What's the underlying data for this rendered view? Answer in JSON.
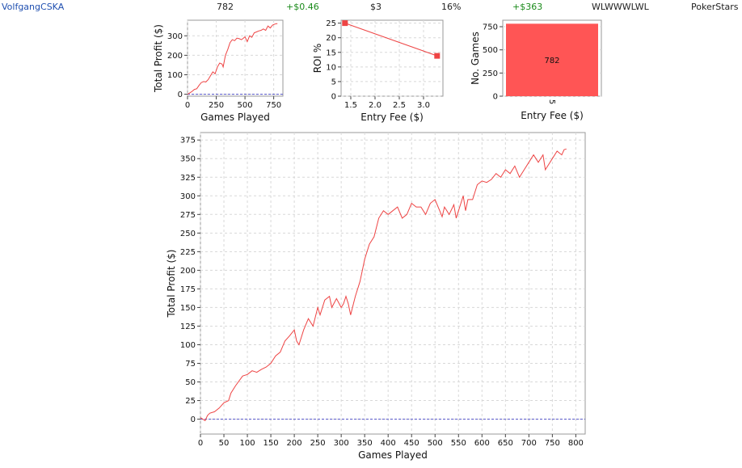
{
  "summary": {
    "player": "VolfgangCSKA",
    "games": "782",
    "avg_profit": "+$0.46",
    "avg_buyin": "$3",
    "roi": "16%",
    "total_profit": "+$363",
    "streak": "WLWWWLWL",
    "site": "PokerStars"
  },
  "colors": {
    "series": "#ee4444",
    "bar": "#ff5555",
    "zero_line": "#5555cc",
    "grid": "#d8d8d8",
    "positive": "#1a8a1a",
    "player_link": "#1f4fb0"
  },
  "chart_data": [
    {
      "id": "mini_profit",
      "type": "line",
      "xlabel": "Games Played",
      "ylabel": "Total Profit ($)",
      "xlim": [
        0,
        830
      ],
      "ylim": [
        -10,
        380
      ],
      "xticks": [
        0,
        250,
        500,
        750
      ],
      "yticks": [
        0,
        100,
        200,
        300
      ],
      "x": [
        0,
        20,
        40,
        60,
        80,
        100,
        120,
        140,
        160,
        180,
        200,
        220,
        240,
        260,
        280,
        300,
        310,
        330,
        350,
        370,
        390,
        410,
        430,
        450,
        470,
        490,
        500,
        520,
        540,
        560,
        580,
        600,
        620,
        640,
        660,
        680,
        700,
        720,
        740,
        760,
        782
      ],
      "y": [
        0,
        7,
        15,
        25,
        28,
        45,
        60,
        65,
        63,
        75,
        95,
        115,
        105,
        140,
        160,
        155,
        140,
        200,
        230,
        265,
        280,
        275,
        288,
        285,
        280,
        290,
        295,
        270,
        300,
        292,
        315,
        320,
        325,
        328,
        335,
        328,
        350,
        340,
        355,
        360,
        363
      ],
      "zero_line": true,
      "grid": true
    },
    {
      "id": "roi_by_fee",
      "type": "line",
      "xlabel": "Entry Fee ($)",
      "ylabel": "ROI %",
      "xlim": [
        1.3,
        3.4
      ],
      "ylim": [
        0,
        26
      ],
      "xticks": [
        1.5,
        2.0,
        2.5,
        3.0
      ],
      "xtick_labels": [
        "1.5",
        "2.0",
        "2.5",
        "3.0"
      ],
      "yticks": [
        0,
        5,
        10,
        15,
        20,
        25
      ],
      "x": [
        1.38,
        3.28
      ],
      "y": [
        25,
        13.8
      ],
      "grid": true
    },
    {
      "id": "games_by_fee",
      "type": "bar",
      "xlabel": "Entry Fee ($)",
      "ylabel": "No. Games",
      "categories": [
        "5"
      ],
      "values": [
        782
      ],
      "data_labels": [
        "782"
      ],
      "ylim": [
        0,
        820
      ],
      "yticks": [
        0,
        250,
        500,
        750
      ],
      "grid": true
    },
    {
      "id": "main_profit",
      "type": "line",
      "xlabel": "Games Played",
      "ylabel": "Total Profit ($)",
      "xlim": [
        0,
        820
      ],
      "ylim": [
        -20,
        385
      ],
      "xticks": [
        0,
        50,
        100,
        150,
        200,
        250,
        300,
        350,
        400,
        450,
        500,
        550,
        600,
        650,
        700,
        750,
        800
      ],
      "yticks": [
        0,
        25,
        50,
        75,
        100,
        125,
        150,
        175,
        200,
        225,
        250,
        275,
        300,
        325,
        350,
        375
      ],
      "x": [
        0,
        5,
        10,
        15,
        20,
        30,
        40,
        50,
        60,
        65,
        75,
        90,
        100,
        110,
        120,
        130,
        140,
        150,
        160,
        170,
        180,
        190,
        200,
        205,
        210,
        220,
        230,
        240,
        250,
        255,
        265,
        275,
        280,
        290,
        300,
        305,
        310,
        315,
        320,
        330,
        340,
        350,
        360,
        370,
        380,
        390,
        400,
        410,
        420,
        430,
        440,
        450,
        460,
        470,
        480,
        490,
        500,
        510,
        515,
        520,
        530,
        540,
        545,
        550,
        560,
        565,
        570,
        580,
        590,
        600,
        610,
        620,
        630,
        640,
        650,
        660,
        670,
        680,
        690,
        700,
        710,
        720,
        730,
        735,
        740,
        750,
        760,
        770,
        775,
        780
      ],
      "y": [
        2,
        0,
        -2,
        5,
        8,
        10,
        15,
        22,
        25,
        35,
        45,
        58,
        60,
        65,
        63,
        67,
        70,
        75,
        85,
        90,
        105,
        112,
        120,
        105,
        100,
        120,
        135,
        125,
        150,
        140,
        160,
        165,
        150,
        162,
        150,
        155,
        165,
        155,
        140,
        165,
        185,
        215,
        235,
        245,
        270,
        280,
        275,
        280,
        285,
        270,
        275,
        290,
        285,
        285,
        275,
        290,
        295,
        280,
        272,
        285,
        275,
        288,
        270,
        280,
        300,
        280,
        295,
        295,
        315,
        320,
        318,
        322,
        330,
        325,
        335,
        330,
        340,
        325,
        335,
        345,
        355,
        345,
        355,
        335,
        340,
        350,
        360,
        355,
        362,
        363
      ],
      "zero_line": true,
      "grid": true
    }
  ]
}
